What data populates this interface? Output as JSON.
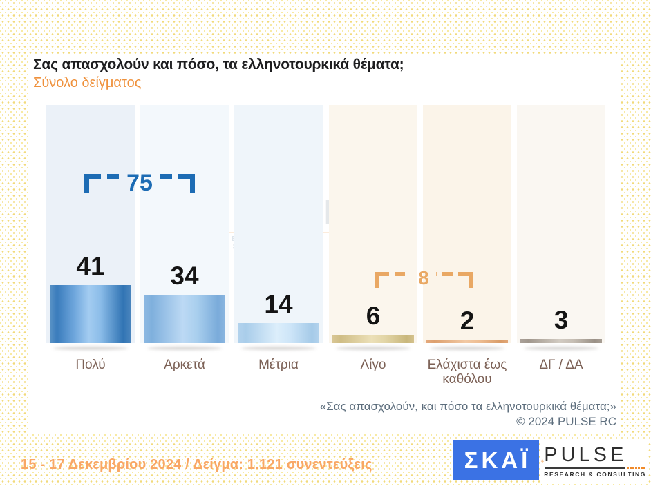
{
  "title": "Σας απασχολούν και πόσο, τα ελληνοτουρκικά θέματα;",
  "subtitle": "Σύνολο δείγματος",
  "chart_data": {
    "type": "bar",
    "categories": [
      "Πολύ",
      "Αρκετά",
      "Μέτρια",
      "Λίγο",
      "Ελάχιστα έως καθόλου",
      "ΔΓ / ΔΑ"
    ],
    "values": [
      41,
      34,
      14,
      6,
      2,
      3
    ],
    "title": "Σας απασχολούν και πόσο, τα ελληνοτουρκικά θέματα;",
    "xlabel": "",
    "ylabel": "",
    "ylim": [
      0,
      100
    ],
    "grid": false,
    "legend": "none",
    "annotations": [
      {
        "label": "75",
        "spans": [
          "Πολύ",
          "Αρκετά"
        ],
        "color": "#1d6cb4"
      },
      {
        "label": "8",
        "spans": [
          "Λίγο",
          "Ελάχιστα έως καθόλου"
        ],
        "color": "#e9a864"
      }
    ]
  },
  "columns": [
    {
      "label": "Πολύ",
      "value": "41"
    },
    {
      "label": "Αρκετά",
      "value": "34"
    },
    {
      "label": "Μέτρια",
      "value": "14"
    },
    {
      "label": "Λίγο",
      "value": "6"
    },
    {
      "label": "Ελάχιστα έως καθόλου",
      "value": "2"
    },
    {
      "label": "ΔΓ / ΔΑ",
      "value": "3"
    }
  ],
  "group_totals": {
    "concerned": "75",
    "not_concerned": "8"
  },
  "watermark": {
    "name": "PULSE",
    "sub": "RESEARCH & CONSULTING"
  },
  "footnote": {
    "quote": "«Σας απασχολούν, και πόσο τα ελληνοτουρκικά θέματα;»",
    "copyright": "©  2024  PULSE RC"
  },
  "bottom_bar": {
    "date_sample": "15 - 17 Δεκεμβρίου 2024  /  Δείγμα:  1.121 συνεντεύξεις"
  },
  "logos": {
    "skai": "ΣΚΑΪ",
    "pulse_name": "PULSE",
    "pulse_sub": "RESEARCH & CONSULTING"
  },
  "colors": {
    "accent_blue": "#1d6cb4",
    "accent_orange": "#e9a864",
    "subtitle_orange": "#ef913c",
    "date_orange": "#f9a765",
    "category_brown": "#7c6156",
    "footnote_gray": "#5d6e7d",
    "skai_blue": "#3b72e4",
    "pulse_logo_orange": "#f08a2a"
  }
}
